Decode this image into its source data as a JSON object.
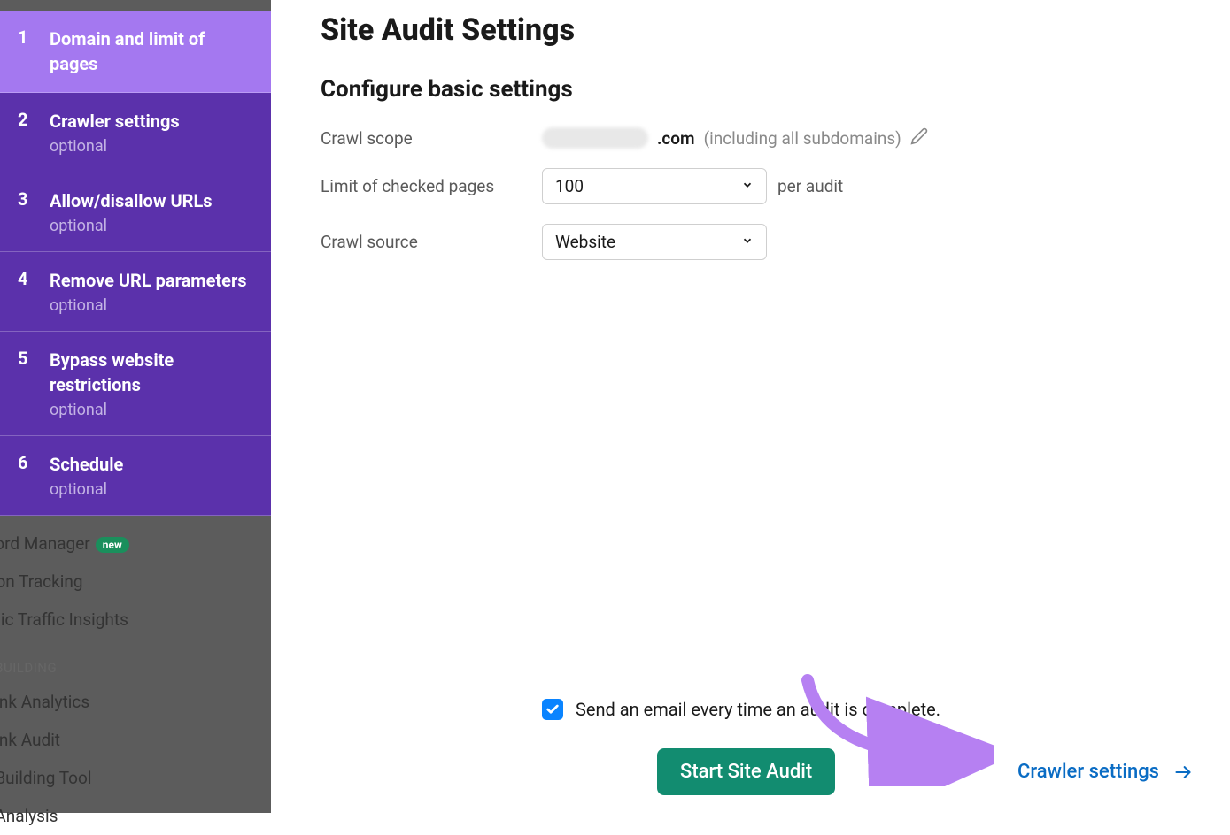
{
  "sidebar": {
    "steps": [
      {
        "number": "1",
        "title": "Domain and limit of pages",
        "optional": "",
        "active": true
      },
      {
        "number": "2",
        "title": "Crawler settings",
        "optional": "optional",
        "active": false
      },
      {
        "number": "3",
        "title": "Allow/disallow URLs",
        "optional": "optional",
        "active": false
      },
      {
        "number": "4",
        "title": "Remove URL parameters",
        "optional": "optional",
        "active": false
      },
      {
        "number": "5",
        "title": "Bypass website restrictions",
        "optional": "optional",
        "active": false
      },
      {
        "number": "6",
        "title": "Schedule",
        "optional": "optional",
        "active": false
      }
    ],
    "below_items": [
      {
        "label": "word Manager",
        "badge": "new",
        "type": "item"
      },
      {
        "label": "ition Tracking",
        "type": "item"
      },
      {
        "label": "anic Traffic Insights",
        "type": "item"
      },
      {
        "label": "K BUILDING",
        "type": "heading"
      },
      {
        "label": "klink Analytics",
        "type": "item"
      },
      {
        "label": "klink Audit",
        "type": "item"
      },
      {
        "label": "k Building Tool",
        "type": "item"
      },
      {
        "label": "k Analysis",
        "type": "item"
      }
    ]
  },
  "main": {
    "page_title": "Site Audit Settings",
    "section_title": "Configure basic settings",
    "crawl_scope": {
      "label": "Crawl scope",
      "domain_suffix": ".com",
      "note": "(including all subdomains)"
    },
    "limit_pages": {
      "label": "Limit of checked pages",
      "value": "100",
      "suffix": "per audit"
    },
    "crawl_source": {
      "label": "Crawl source",
      "value": "Website"
    }
  },
  "footer": {
    "email_label": "Send an email every time an audit is complete.",
    "start_button": "Start Site Audit",
    "next_link": "Crawler settings"
  },
  "colors": {
    "sidebar_purple": "#5b31ab",
    "sidebar_active": "#a478f0",
    "sidebar_shadow": "#5c5c5c",
    "green_button": "#128c70",
    "link_blue": "#0a6cc4",
    "checkbox_blue": "#0a84ff",
    "annotation_purple": "#b680f2",
    "badge_green": "#1a8f5c"
  }
}
